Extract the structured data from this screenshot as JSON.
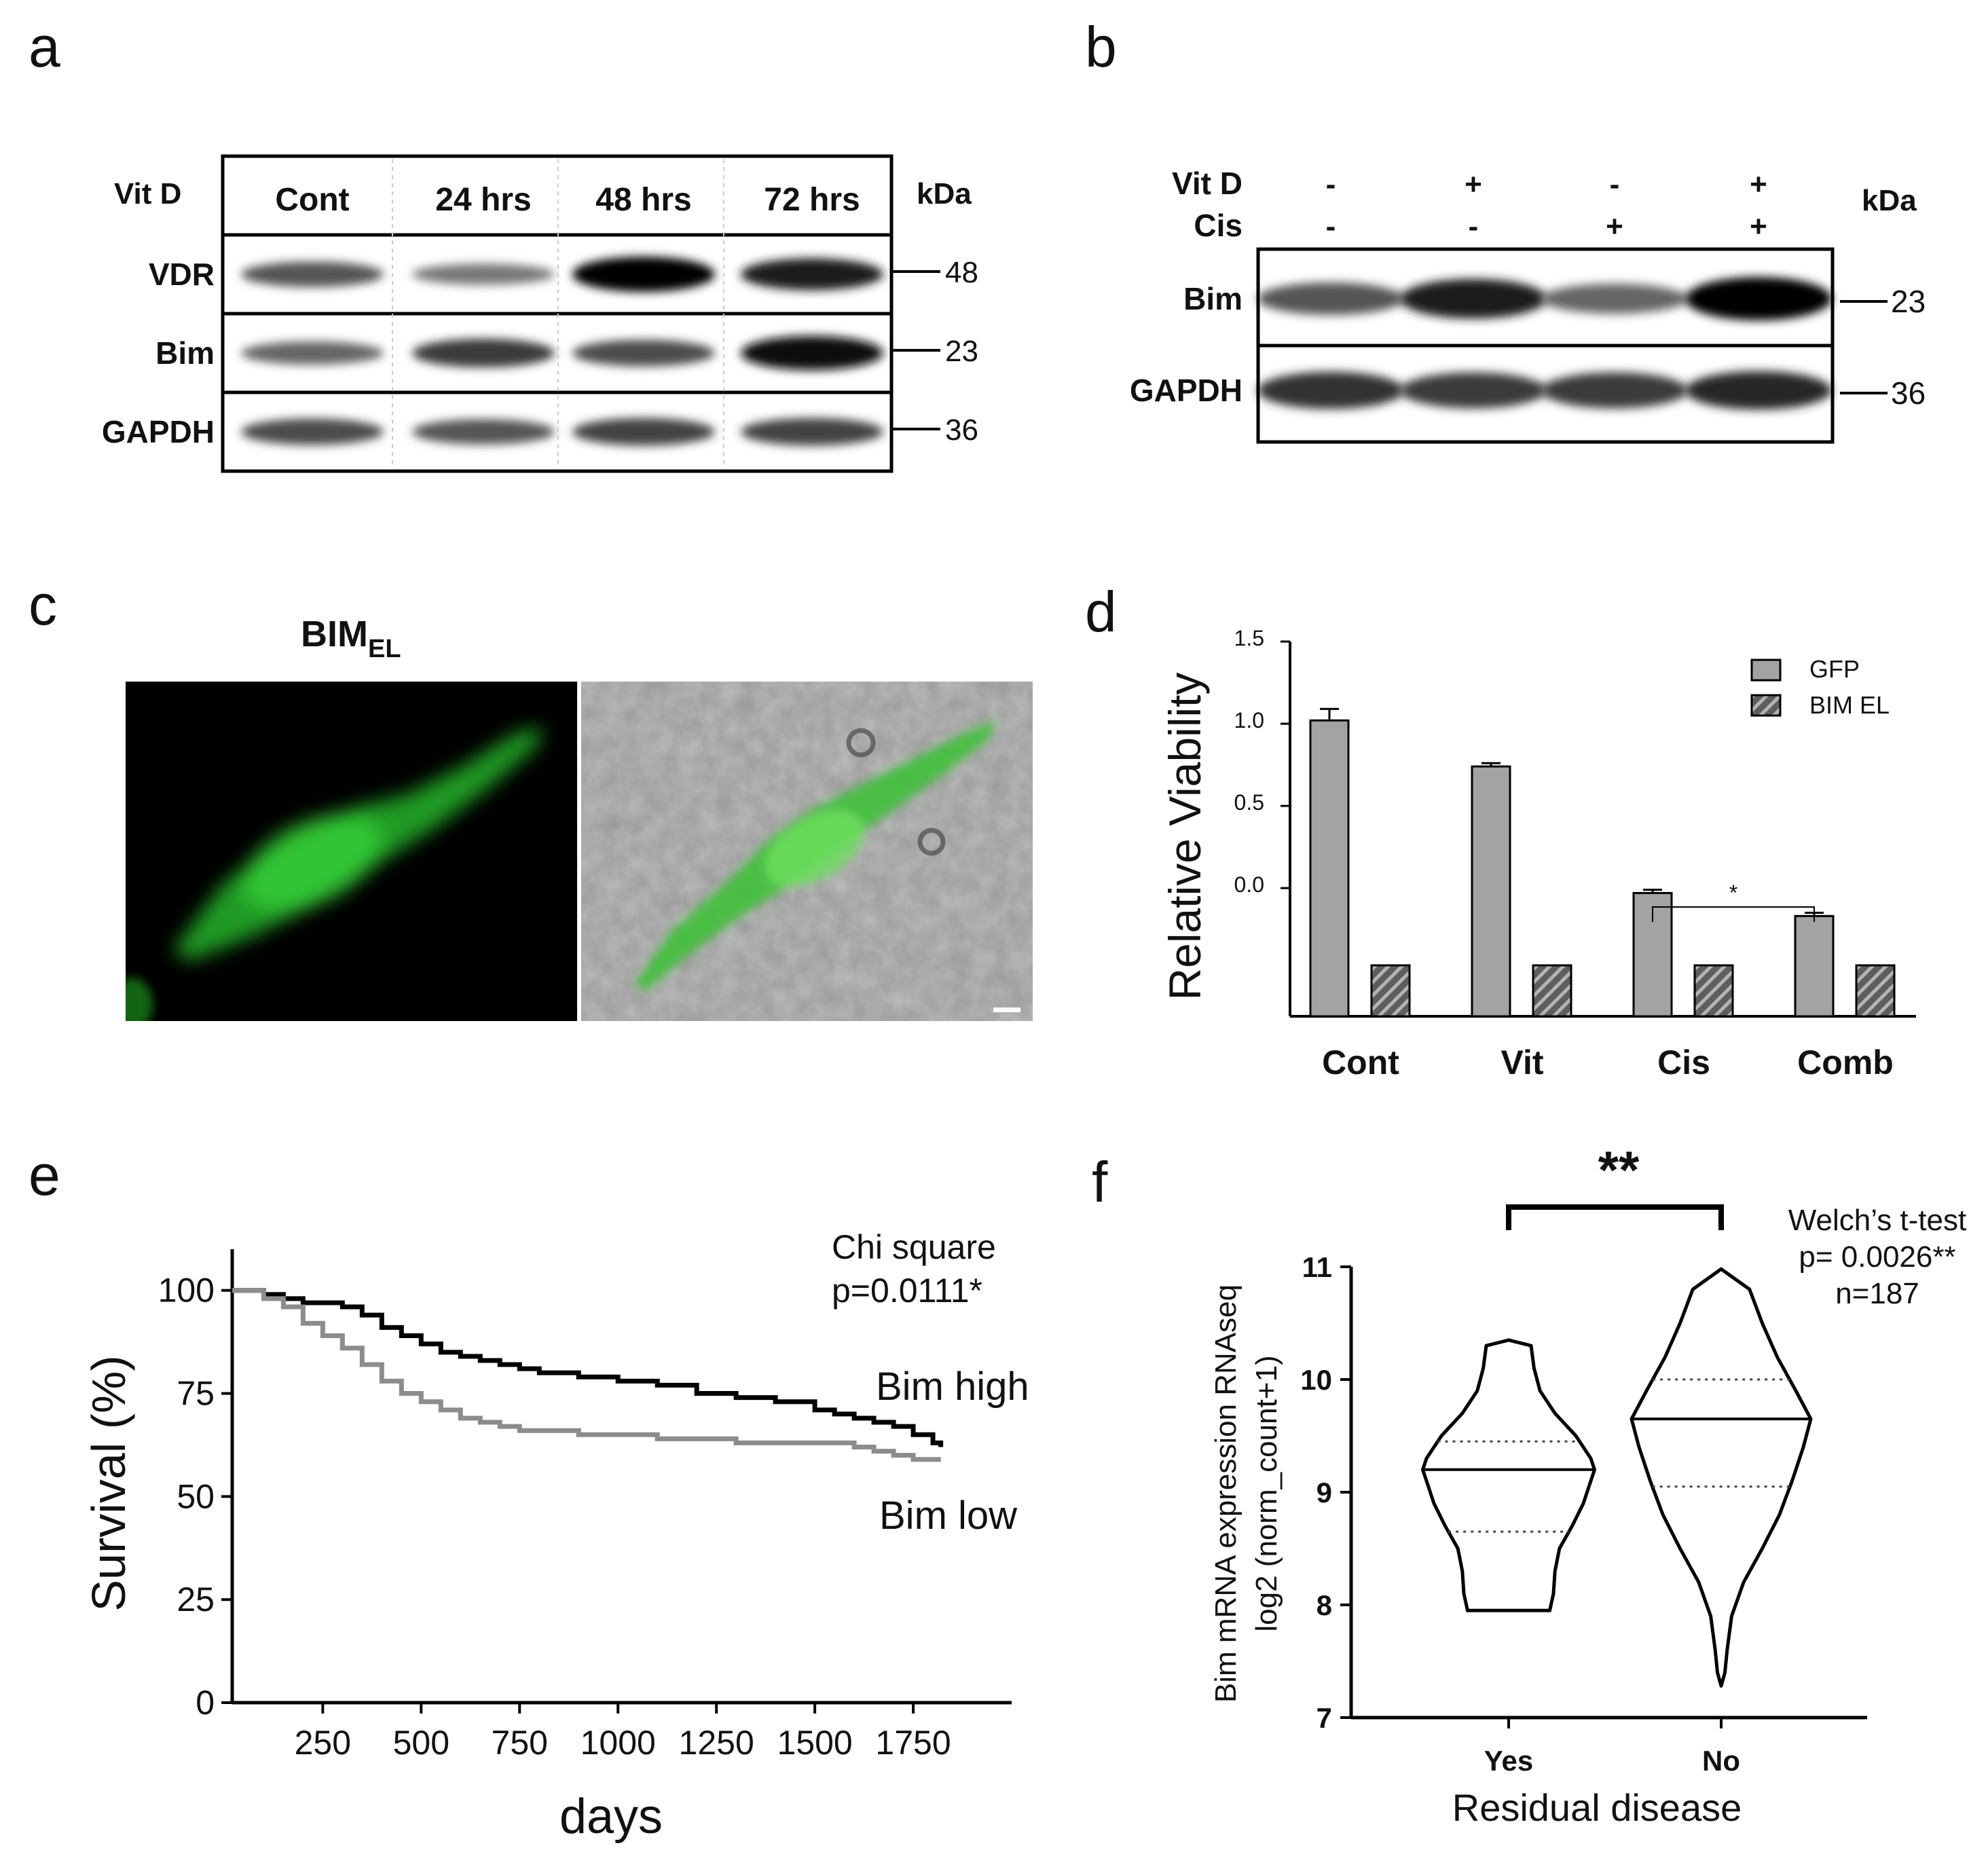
{
  "panels": {
    "a": {
      "label": "a",
      "header_label": "Vit D",
      "lanes": [
        "Cont",
        "24 hrs",
        "48 hrs",
        "72 hrs"
      ],
      "kda_label": "kDa",
      "rows": [
        {
          "name": "VDR",
          "kda": "48",
          "intensities": [
            0.55,
            0.35,
            1.0,
            0.85
          ]
        },
        {
          "name": "Bim",
          "kda": "23",
          "intensities": [
            0.45,
            0.7,
            0.6,
            0.95
          ]
        },
        {
          "name": "GAPDH",
          "kda": "36",
          "intensities": [
            0.6,
            0.55,
            0.65,
            0.65
          ]
        }
      ]
    },
    "b": {
      "label": "b",
      "treatments": [
        {
          "name": "Vit D",
          "values": [
            "-",
            "+",
            "-",
            "+"
          ]
        },
        {
          "name": "Cis",
          "values": [
            "-",
            "-",
            "+",
            "+"
          ]
        }
      ],
      "kda_label": "kDa",
      "rows": [
        {
          "name": "Bim",
          "kda": "23",
          "intensities": [
            0.55,
            0.85,
            0.45,
            1.0
          ]
        },
        {
          "name": "GAPDH",
          "kda": "36",
          "intensities": [
            0.75,
            0.7,
            0.7,
            0.8
          ]
        }
      ]
    },
    "c": {
      "label": "c",
      "title_main": "BIM",
      "title_sub": "EL"
    },
    "d": {
      "label": "d",
      "chart_data": {
        "type": "bar",
        "categories": [
          "Cont",
          "Vit",
          "Cis",
          "Comb"
        ],
        "series": [
          {
            "name": "GFP",
            "values": [
              1.02,
              0.74,
              -0.03,
              -0.17
            ],
            "errors": [
              0.07,
              0.02,
              0.02,
              0.02
            ],
            "color": "#a3a3a3",
            "pattern": "solid"
          },
          {
            "name": "BIM EL",
            "values": [
              -0.47,
              -0.47,
              -0.47,
              -0.47
            ],
            "errors": [
              0.005,
              0.005,
              0.005,
              0.005
            ],
            "color": "#6b6b6b",
            "pattern": "hatched"
          }
        ],
        "ylabel": "Relative Viability",
        "yticks": [
          "1.5",
          "1.0",
          "0.5",
          "0.0"
        ],
        "ylim": [
          -0.78,
          1.5
        ],
        "legend_position": "top-right",
        "annotation": {
          "text": "*",
          "between": [
            "Cis",
            "Comb"
          ]
        }
      }
    },
    "e": {
      "label": "e",
      "chart_data": {
        "type": "line",
        "xlabel": "days",
        "ylabel": "Survival (%)",
        "xticks": [
          "250",
          "500",
          "750",
          "1000",
          "1250",
          "1500",
          "1750"
        ],
        "yticks": [
          "100",
          "75",
          "50",
          "25",
          "0"
        ],
        "xlim": [
          20,
          2000
        ],
        "ylim": [
          0,
          110
        ],
        "annotation_line1": "Chi square",
        "annotation_line2": "p=0.0111*",
        "series": [
          {
            "name": "Bim high",
            "color": "#000000",
            "x": [
              20,
              100,
              150,
              200,
              300,
              350,
              400,
              450,
              500,
              550,
              600,
              650,
              700,
              750,
              800,
              900,
              1000,
              1100,
              1200,
              1300,
              1400,
              1500,
              1550,
              1600,
              1650,
              1700,
              1750,
              1800,
              1820
            ],
            "y": [
              100,
              99,
              98,
              97,
              96,
              94,
              91,
              89,
              87,
              85,
              84,
              83,
              82,
              81,
              80,
              79,
              78,
              77,
              75,
              74,
              73,
              71,
              70,
              69,
              68,
              67,
              65,
              63,
              62
            ]
          },
          {
            "name": "Bim low",
            "color": "#8c8c8c",
            "x": [
              20,
              100,
              150,
              200,
              250,
              300,
              350,
              400,
              450,
              500,
              550,
              600,
              650,
              700,
              750,
              800,
              900,
              1000,
              1100,
              1200,
              1300,
              1400,
              1500,
              1600,
              1650,
              1700,
              1750,
              1800,
              1820
            ],
            "y": [
              100,
              98,
              96,
              92,
              89,
              86,
              82,
              78,
              75,
              73,
              71,
              69,
              68,
              67,
              66,
              66,
              65,
              65,
              64,
              64,
              63,
              63,
              63,
              62,
              61,
              60,
              59,
              59,
              59
            ]
          }
        ]
      }
    },
    "f": {
      "label": "f",
      "chart_data": {
        "type": "violin",
        "categories": [
          "Yes",
          "No"
        ],
        "xlabel": "Residual disease",
        "ylabel_line1": "Bim mRNA expression RNAseq",
        "ylabel_line2": "log2 (norm_count+1)",
        "yticks": [
          "11",
          "10",
          "9",
          "8",
          "7"
        ],
        "ylim": [
          7,
          11
        ],
        "significance": "**",
        "stats_line1": "Welch’s t-test",
        "stats_line2": "p= 0.0026**",
        "stats_line3": "n=187",
        "violins": [
          {
            "name": "Yes",
            "min": 7.95,
            "max": 10.35,
            "q1": 8.65,
            "median": 9.2,
            "q3": 9.45,
            "profile": [
              [
                7.95,
                0.55
              ],
              [
                8.1,
                0.6
              ],
              [
                8.3,
                0.62
              ],
              [
                8.5,
                0.68
              ],
              [
                8.7,
                0.85
              ],
              [
                8.9,
                1.0
              ],
              [
                9.1,
                1.1
              ],
              [
                9.2,
                1.15
              ],
              [
                9.3,
                1.1
              ],
              [
                9.5,
                0.9
              ],
              [
                9.7,
                0.62
              ],
              [
                9.9,
                0.42
              ],
              [
                10.1,
                0.34
              ],
              [
                10.3,
                0.3
              ],
              [
                10.35,
                0.0
              ]
            ]
          },
          {
            "name": "No",
            "min": 7.28,
            "max": 10.98,
            "q1": 9.05,
            "median": 9.65,
            "q3": 10.0,
            "profile": [
              [
                7.28,
                0.0
              ],
              [
                7.4,
                0.05
              ],
              [
                7.6,
                0.08
              ],
              [
                7.9,
                0.14
              ],
              [
                8.2,
                0.3
              ],
              [
                8.5,
                0.55
              ],
              [
                8.8,
                0.78
              ],
              [
                9.1,
                0.95
              ],
              [
                9.4,
                1.1
              ],
              [
                9.65,
                1.2
              ],
              [
                9.9,
                1.0
              ],
              [
                10.2,
                0.75
              ],
              [
                10.5,
                0.55
              ],
              [
                10.8,
                0.38
              ],
              [
                10.98,
                0.0
              ]
            ]
          }
        ]
      }
    }
  }
}
